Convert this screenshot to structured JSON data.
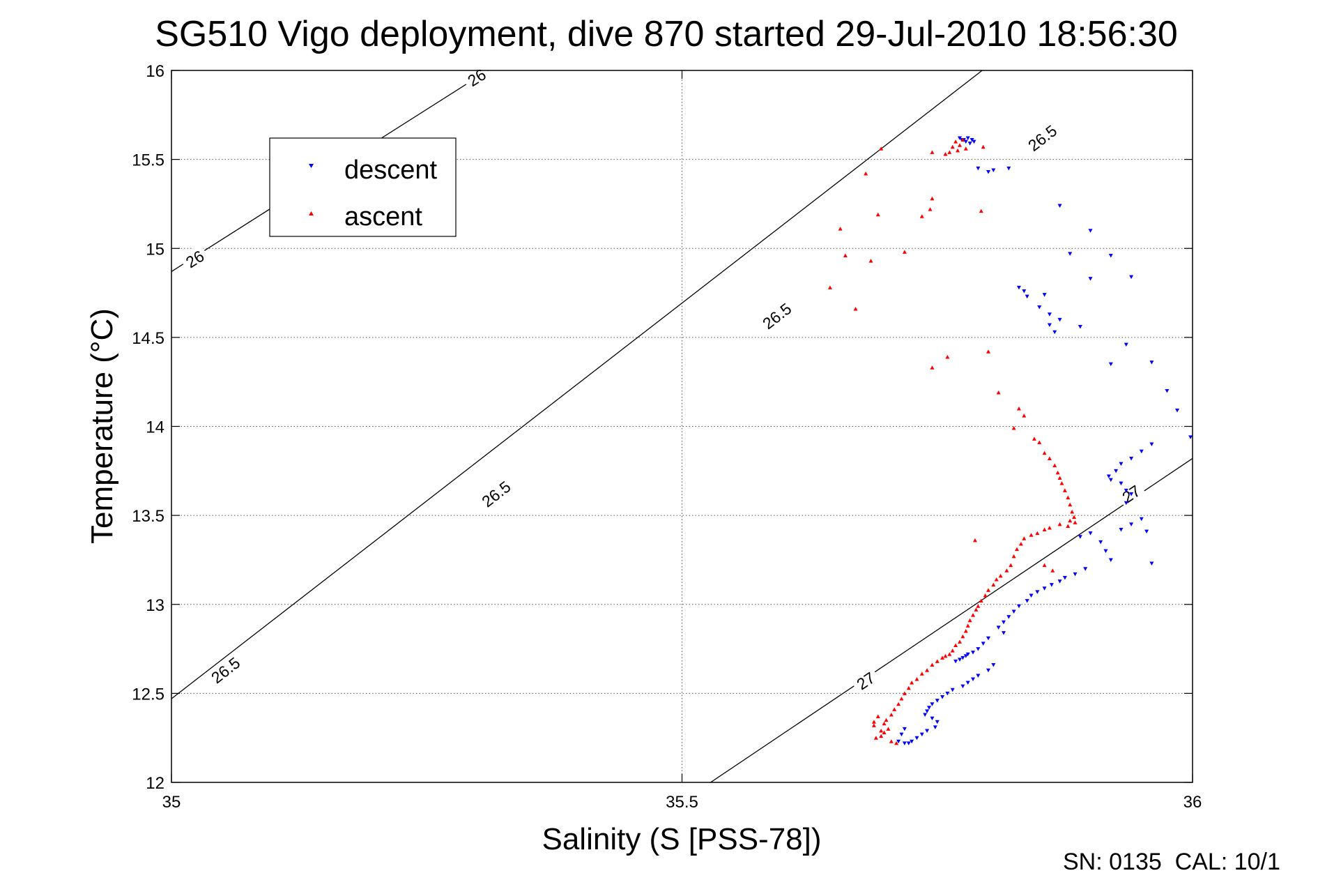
{
  "chart_data": {
    "type": "scatter",
    "title": "SG510 Vigo deployment, dive 870 started 29-Jul-2010 18:56:30",
    "xlabel": "Salinity (S [PSS-78])",
    "ylabel": "Temperature (°C)",
    "xlim": [
      35,
      36
    ],
    "ylim": [
      12,
      16
    ],
    "xticks": [
      "35",
      "35.5",
      "36"
    ],
    "yticks": [
      "12",
      "12.5",
      "13",
      "13.5",
      "14",
      "14.5",
      "15",
      "15.5",
      "16"
    ],
    "grid": true,
    "legend": {
      "placement": "top-left",
      "entries": [
        "descent",
        "ascent"
      ]
    },
    "footnote": "SN: 0135  CAL: 10/1",
    "density_contours": [
      {
        "label": "26",
        "points": [
          [
            35.0,
            14.87
          ],
          [
            35.31,
            16.0
          ]
        ],
        "label_positions": [
          [
            35.023,
            14.94
          ],
          [
            35.299,
            15.96
          ]
        ]
      },
      {
        "label": "26.5",
        "points": [
          [
            35.0,
            12.47
          ],
          [
            35.794,
            16.0
          ]
        ],
        "label_positions": [
          [
            35.053,
            12.63
          ],
          [
            35.318,
            13.62
          ],
          [
            35.593,
            14.62
          ],
          [
            35.853,
            15.62
          ]
        ]
      },
      {
        "label": "27",
        "points": [
          [
            35.528,
            12.0
          ],
          [
            36.0,
            13.82
          ]
        ],
        "label_positions": [
          [
            35.68,
            12.57
          ],
          [
            35.94,
            13.62
          ]
        ]
      }
    ],
    "series": [
      {
        "name": "descent",
        "color": "#0000ff",
        "marker": "triangle-down",
        "points": [
          [
            35.772,
            15.62
          ],
          [
            35.776,
            15.61
          ],
          [
            35.78,
            15.62
          ],
          [
            35.784,
            15.61
          ],
          [
            35.778,
            15.6
          ],
          [
            35.786,
            15.6
          ],
          [
            35.782,
            15.59
          ],
          [
            35.774,
            15.61
          ],
          [
            35.79,
            15.45
          ],
          [
            35.8,
            15.43
          ],
          [
            35.805,
            15.44
          ],
          [
            35.82,
            15.45
          ],
          [
            35.87,
            15.24
          ],
          [
            35.9,
            15.1
          ],
          [
            35.88,
            14.97
          ],
          [
            35.92,
            14.96
          ],
          [
            35.9,
            14.83
          ],
          [
            35.94,
            14.84
          ],
          [
            35.83,
            14.78
          ],
          [
            35.835,
            14.76
          ],
          [
            35.838,
            14.73
          ],
          [
            35.855,
            14.74
          ],
          [
            35.85,
            14.67
          ],
          [
            35.86,
            14.63
          ],
          [
            35.87,
            14.6
          ],
          [
            35.86,
            14.57
          ],
          [
            35.865,
            14.53
          ],
          [
            35.89,
            14.56
          ],
          [
            35.935,
            14.46
          ],
          [
            35.92,
            14.35
          ],
          [
            35.96,
            14.36
          ],
          [
            35.975,
            14.2
          ],
          [
            35.985,
            14.09
          ],
          [
            35.998,
            13.94
          ],
          [
            35.96,
            13.9
          ],
          [
            35.95,
            13.86
          ],
          [
            35.94,
            13.82
          ],
          [
            35.93,
            13.79
          ],
          [
            35.925,
            13.75
          ],
          [
            35.918,
            13.72
          ],
          [
            35.92,
            13.7
          ],
          [
            35.93,
            13.68
          ],
          [
            35.935,
            13.64
          ],
          [
            35.94,
            13.62
          ],
          [
            35.935,
            13.57
          ],
          [
            35.95,
            13.48
          ],
          [
            35.94,
            13.45
          ],
          [
            35.93,
            13.42
          ],
          [
            35.955,
            13.41
          ],
          [
            35.9,
            13.4
          ],
          [
            35.89,
            13.38
          ],
          [
            35.91,
            13.35
          ],
          [
            35.915,
            13.3
          ],
          [
            35.92,
            13.25
          ],
          [
            35.895,
            13.2
          ],
          [
            35.885,
            13.17
          ],
          [
            35.96,
            13.23
          ],
          [
            35.875,
            13.15
          ],
          [
            35.87,
            13.13
          ],
          [
            35.862,
            13.11
          ],
          [
            35.855,
            13.09
          ],
          [
            35.848,
            13.07
          ],
          [
            35.842,
            13.05
          ],
          [
            35.838,
            13.02
          ],
          [
            35.83,
            12.99
          ],
          [
            35.825,
            12.96
          ],
          [
            35.82,
            12.93
          ],
          [
            35.815,
            12.9
          ],
          [
            35.81,
            12.87
          ],
          [
            35.815,
            12.84
          ],
          [
            35.8,
            12.81
          ],
          [
            35.795,
            12.78
          ],
          [
            35.79,
            12.75
          ],
          [
            35.785,
            12.73
          ],
          [
            35.78,
            12.72
          ],
          [
            35.778,
            12.71
          ],
          [
            35.775,
            12.7
          ],
          [
            35.772,
            12.69
          ],
          [
            35.768,
            12.68
          ],
          [
            35.805,
            12.66
          ],
          [
            35.8,
            12.63
          ],
          [
            35.79,
            12.6
          ],
          [
            35.785,
            12.58
          ],
          [
            35.78,
            12.56
          ],
          [
            35.775,
            12.54
          ],
          [
            35.765,
            12.52
          ],
          [
            35.76,
            12.5
          ],
          [
            35.755,
            12.48
          ],
          [
            35.75,
            12.46
          ],
          [
            35.745,
            12.44
          ],
          [
            35.742,
            12.42
          ],
          [
            35.74,
            12.4
          ],
          [
            35.738,
            12.38
          ],
          [
            35.745,
            12.36
          ],
          [
            35.75,
            12.34
          ],
          [
            35.748,
            12.31
          ],
          [
            35.74,
            12.29
          ],
          [
            35.735,
            12.27
          ],
          [
            35.73,
            12.25
          ],
          [
            35.725,
            12.23
          ],
          [
            35.718,
            12.22
          ],
          [
            35.722,
            12.22
          ],
          [
            35.712,
            12.23
          ],
          [
            35.715,
            12.27
          ],
          [
            35.718,
            12.3
          ]
        ]
      },
      {
        "name": "ascent",
        "color": "#ff0000",
        "marker": "triangle-up",
        "points": [
          [
            35.765,
            15.57
          ],
          [
            35.77,
            15.55
          ],
          [
            35.772,
            15.58
          ],
          [
            35.778,
            15.56
          ],
          [
            35.768,
            15.6
          ],
          [
            35.775,
            15.61
          ],
          [
            35.762,
            15.54
          ],
          [
            35.758,
            15.53
          ],
          [
            35.745,
            15.54
          ],
          [
            35.795,
            15.57
          ],
          [
            35.695,
            15.56
          ],
          [
            35.68,
            15.42
          ],
          [
            35.745,
            15.28
          ],
          [
            35.743,
            15.22
          ],
          [
            35.735,
            15.18
          ],
          [
            35.793,
            15.21
          ],
          [
            35.692,
            15.19
          ],
          [
            35.655,
            15.11
          ],
          [
            35.66,
            14.96
          ],
          [
            35.718,
            14.98
          ],
          [
            35.685,
            14.93
          ],
          [
            35.645,
            14.78
          ],
          [
            35.67,
            14.66
          ],
          [
            35.76,
            14.39
          ],
          [
            35.8,
            14.42
          ],
          [
            35.745,
            14.33
          ],
          [
            35.81,
            14.19
          ],
          [
            35.83,
            14.1
          ],
          [
            35.835,
            14.06
          ],
          [
            35.825,
            13.99
          ],
          [
            35.845,
            13.93
          ],
          [
            35.85,
            13.91
          ],
          [
            35.855,
            13.85
          ],
          [
            35.86,
            13.82
          ],
          [
            35.865,
            13.78
          ],
          [
            35.868,
            13.74
          ],
          [
            35.87,
            13.71
          ],
          [
            35.872,
            13.68
          ],
          [
            35.875,
            13.64
          ],
          [
            35.878,
            13.6
          ],
          [
            35.88,
            13.56
          ],
          [
            35.882,
            13.52
          ],
          [
            35.884,
            13.49
          ],
          [
            35.88,
            13.47
          ],
          [
            35.885,
            13.46
          ],
          [
            35.878,
            13.44
          ],
          [
            35.87,
            13.45
          ],
          [
            35.86,
            13.43
          ],
          [
            35.855,
            13.42
          ],
          [
            35.848,
            13.4
          ],
          [
            35.842,
            13.39
          ],
          [
            35.835,
            13.37
          ],
          [
            35.832,
            13.34
          ],
          [
            35.828,
            13.31
          ],
          [
            35.825,
            13.27
          ],
          [
            35.822,
            13.22
          ],
          [
            35.818,
            13.19
          ],
          [
            35.812,
            13.16
          ],
          [
            35.808,
            13.14
          ],
          [
            35.805,
            13.11
          ],
          [
            35.8,
            13.08
          ],
          [
            35.797,
            13.05
          ],
          [
            35.793,
            13.02
          ],
          [
            35.79,
            12.99
          ],
          [
            35.788,
            12.97
          ],
          [
            35.785,
            12.94
          ],
          [
            35.782,
            12.91
          ],
          [
            35.78,
            12.88
          ],
          [
            35.778,
            12.85
          ],
          [
            35.775,
            12.82
          ],
          [
            35.772,
            12.79
          ],
          [
            35.768,
            12.77
          ],
          [
            35.765,
            12.74
          ],
          [
            35.762,
            12.72
          ],
          [
            35.758,
            12.71
          ],
          [
            35.755,
            12.7
          ],
          [
            35.787,
            13.36
          ],
          [
            35.855,
            13.22
          ],
          [
            35.863,
            13.19
          ],
          [
            35.75,
            12.68
          ],
          [
            35.745,
            12.66
          ],
          [
            35.74,
            12.63
          ],
          [
            35.735,
            12.61
          ],
          [
            35.73,
            12.58
          ],
          [
            35.725,
            12.56
          ],
          [
            35.722,
            12.53
          ],
          [
            35.718,
            12.5
          ],
          [
            35.715,
            12.47
          ],
          [
            35.712,
            12.44
          ],
          [
            35.708,
            12.41
          ],
          [
            35.705,
            12.38
          ],
          [
            35.7,
            12.35
          ],
          [
            35.698,
            12.33
          ],
          [
            35.702,
            12.3
          ],
          [
            35.698,
            12.28
          ],
          [
            35.695,
            12.26
          ],
          [
            35.69,
            12.25
          ],
          [
            35.705,
            12.23
          ],
          [
            35.71,
            12.22
          ],
          [
            35.695,
            12.29
          ],
          [
            35.688,
            12.34
          ],
          [
            35.692,
            12.37
          ],
          [
            35.688,
            12.32
          ]
        ]
      }
    ]
  }
}
